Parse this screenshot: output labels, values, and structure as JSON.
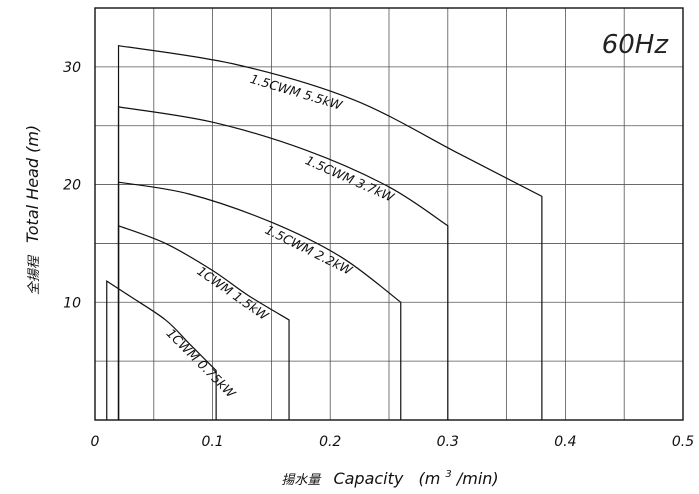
{
  "chart_data": {
    "type": "line",
    "frequency_label": "60Hz",
    "xlabel": "揚水量 Capacity (m³/min)",
    "xlabel_jp": "揚水量",
    "xlabel_en": "Capacity",
    "xlabel_unit_open": "(m",
    "xlabel_unit_sup": "3",
    "xlabel_unit_close": "/min)",
    "ylabel": "全揚程 Total Head (m)",
    "ylabel_jp": "全揚程",
    "ylabel_en": "Total Head (m)",
    "xlim": [
      0,
      0.5
    ],
    "ylim": [
      0,
      35
    ],
    "x_ticks": [
      0,
      0.1,
      0.2,
      0.3,
      0.4,
      0.5
    ],
    "x_tick_labels": [
      "0",
      "0.1",
      "0.2",
      "0.3",
      "0.4",
      "0.5"
    ],
    "y_ticks": [
      10,
      20,
      30
    ],
    "y_tick_labels": [
      "10",
      "20",
      "30"
    ],
    "grid": true,
    "series": [
      {
        "name": "1CWM 0.75kW",
        "x": [
          0.01,
          0.03,
          0.06,
          0.08,
          0.095,
          0.103
        ],
        "y": [
          11.8,
          10.5,
          8.5,
          6.5,
          5.0,
          4.2
        ],
        "x_max": 0.103
      },
      {
        "name": "1CWM 1.5kW",
        "x": [
          0.02,
          0.06,
          0.1,
          0.13,
          0.165
        ],
        "y": [
          16.5,
          15.0,
          12.7,
          10.6,
          8.5
        ],
        "x_max": 0.165
      },
      {
        "name": "1.5CWM 2.2kW",
        "x": [
          0.02,
          0.08,
          0.15,
          0.21,
          0.26
        ],
        "y": [
          20.2,
          19.2,
          16.8,
          13.8,
          10.0
        ],
        "x_max": 0.26
      },
      {
        "name": "1.5CWM 3.7kW",
        "x": [
          0.02,
          0.1,
          0.18,
          0.25,
          0.3
        ],
        "y": [
          26.6,
          25.3,
          22.9,
          19.8,
          16.5
        ],
        "x_max": 0.3
      },
      {
        "name": "1.5CWM 5.5kW",
        "x": [
          0.02,
          0.12,
          0.22,
          0.31,
          0.38
        ],
        "y": [
          31.8,
          30.2,
          27.2,
          22.6,
          19.0
        ],
        "x_max": 0.38
      }
    ]
  }
}
